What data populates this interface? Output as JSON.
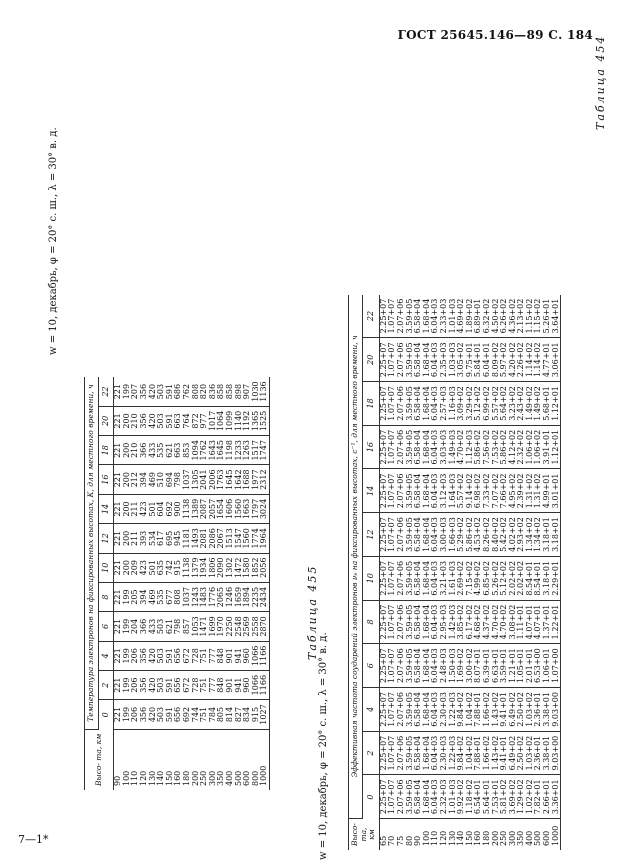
{
  "header": "ГОСТ 25645.146—89 С. 184",
  "footer": "7—1*",
  "table454": {
    "label": "Таблица 454",
    "title": "w = 10, декабрь, φ = 20° с. ш., λ = 30° в. д.",
    "subtitle": "Температура электронов на фиксированных высотах, К, для местного времени, ч",
    "alt_header": "Высо- та, км",
    "columns": [
      "0",
      "2",
      "4",
      "6",
      "8",
      "10",
      "12",
      "14",
      "16",
      "18",
      "20",
      "22"
    ],
    "rows": [
      [
        "90",
        "221",
        "221",
        "221",
        "221",
        "221",
        "221",
        "221",
        "221",
        "221",
        "221",
        "221",
        "221"
      ],
      [
        "100",
        "199",
        "199",
        "199",
        "199",
        "199",
        "200",
        "200",
        "200",
        "200",
        "200",
        "200",
        "199"
      ],
      [
        "110",
        "206",
        "206",
        "206",
        "204",
        "205",
        "209",
        "211",
        "211",
        "212",
        "210",
        "210",
        "207"
      ],
      [
        "120",
        "356",
        "356",
        "356",
        "366",
        "394",
        "423",
        "393",
        "423",
        "394",
        "366",
        "356",
        "356"
      ],
      [
        "130",
        "420",
        "420",
        "420",
        "433",
        "469",
        "501",
        "534",
        "501",
        "469",
        "433",
        "420",
        "420"
      ],
      [
        "140",
        "503",
        "503",
        "503",
        "503",
        "535",
        "635",
        "617",
        "604",
        "510",
        "535",
        "503",
        "503"
      ],
      [
        "150",
        "591",
        "591",
        "591",
        "621",
        "677",
        "742",
        "695",
        "692",
        "694",
        "621",
        "591",
        "591"
      ],
      [
        "160",
        "656",
        "656",
        "656",
        "798",
        "808",
        "915",
        "945",
        "900",
        "798",
        "663",
        "663",
        "686"
      ],
      [
        "180",
        "692",
        "672",
        "672",
        "857",
        "1037",
        "1138",
        "1181",
        "1138",
        "1037",
        "853",
        "764",
        "762"
      ],
      [
        "200",
        "744",
        "728",
        "728",
        "1053",
        "1243",
        "1379",
        "1493",
        "1389",
        "1305",
        "1094",
        "872",
        "808"
      ],
      [
        "250",
        "751",
        "751",
        "751",
        "1471",
        "1483",
        "1934",
        "2081",
        "2087",
        "2041",
        "1762",
        "977",
        "820"
      ],
      [
        "300",
        "784",
        "777",
        "777",
        "1699",
        "1776",
        "1806",
        "2086",
        "2057",
        "2006",
        "1643",
        "1017",
        "836"
      ],
      [
        "350",
        "805",
        "848",
        "848",
        "1970",
        "2065",
        "2090",
        "2067",
        "1654",
        "1763",
        "1645",
        "1064",
        "858"
      ],
      [
        "400",
        "814",
        "901",
        "901",
        "2250",
        "1246",
        "1302",
        "1513",
        "1606",
        "1645",
        "1198",
        "1099",
        "858"
      ],
      [
        "500",
        "827",
        "941",
        "941",
        "2548",
        "1659",
        "1472",
        "1547",
        "1560",
        "1642",
        "1233",
        "1140",
        "898"
      ],
      [
        "600",
        "834",
        "960",
        "960",
        "2569",
        "1894",
        "1580",
        "1560",
        "1663",
        "1688",
        "1263",
        "1192",
        "907"
      ],
      [
        "800",
        "915",
        "1066",
        "1066",
        "2558",
        "2235",
        "1852",
        "1774",
        "1797",
        "1977",
        "1517",
        "1365",
        "1030"
      ],
      [
        "1000",
        "1027",
        "1166",
        "1166",
        "2870",
        "2434",
        "2056",
        "1964",
        "3024",
        "2312",
        "1747",
        "1525",
        "1136"
      ]
    ]
  },
  "table455": {
    "label": "Таблица 455",
    "title": "w = 10, декабрь, φ = 20° с. ш., λ = 30° в. д.",
    "subtitle": "Эффективная частота соударений электронов νₑ на фиксированных высотах, с⁻¹, для местного времени, ч",
    "alt_header": "Высо- та, км",
    "columns": [
      "0",
      "2",
      "4",
      "6",
      "8",
      "10",
      "12",
      "14",
      "16",
      "18",
      "20",
      "22"
    ],
    "rows": [
      [
        "65",
        "2.25+07",
        "2.25+07",
        "2.25+07",
        "2.25+07",
        "2.25+07",
        "2.25+07",
        "2.25+07",
        "2.25+07",
        "2.25+07",
        "2.25+07",
        "2.25+07",
        "2.25+07"
      ],
      [
        "70",
        "1.07+07",
        "1.07+07",
        "1.07+07",
        "1.07+07",
        "1.07+07",
        "1.07+07",
        "1.07+07",
        "1.07+07",
        "1.07+07",
        "1.07+07",
        "1.07+07",
        "1.07+07"
      ],
      [
        "75",
        "2.07+06",
        "2.07+06",
        "2.07+06",
        "2.07+06",
        "2.07+06",
        "2.07+06",
        "2.07+06",
        "2.07+06",
        "2.07+06",
        "2.07+06",
        "2.07+06",
        "2.07+06"
      ],
      [
        "80",
        "3.59+05",
        "3.59+05",
        "3.59+05",
        "3.59+05",
        "3.59+05",
        "3.59+05",
        "3.59+05",
        "3.59+05",
        "3.59+05",
        "3.59+05",
        "3.59+05",
        "3.59+05"
      ],
      [
        "90",
        "6.58+04",
        "6.58+04",
        "6.58+04",
        "6.58+04",
        "6.58+04",
        "6.58+04",
        "6.58+04",
        "6.58+04",
        "6.58+04",
        "6.58+04",
        "6.58+04",
        "6.58+04"
      ],
      [
        "100",
        "1.68+04",
        "1.68+04",
        "1.68+04",
        "1.68+04",
        "1.68+04",
        "1.68+04",
        "1.68+04",
        "1.68+04",
        "1.68+04",
        "1.68+04",
        "1.68+04",
        "1.68+04"
      ],
      [
        "110",
        "6.04+03",
        "6.04+03",
        "6.04+03",
        "6.04+03",
        "6.04+03",
        "6.04+03",
        "6.04+03",
        "6.04+03",
        "6.04+03",
        "6.04+03",
        "6.04+03",
        "6.04+03"
      ],
      [
        "120",
        "2.32+03",
        "2.30+03",
        "2.30+03",
        "2.48+03",
        "2.95+03",
        "3.21+03",
        "3.00+03",
        "3.12+03",
        "3.03+03",
        "2.57+03",
        "2.35+03",
        "2.33+03"
      ],
      [
        "130",
        "1.01+03",
        "1.22+03",
        "1.22+03",
        "1.50+03",
        "1.42+03",
        "1.61+03",
        "1.66+03",
        "1.64+03",
        "1.49+03",
        "1.16+03",
        "1.03+03",
        "1.01+03"
      ],
      [
        "140",
        "9.92+02",
        "9.84+02",
        "9.84+02",
        "1.69+02",
        "3.85+02",
        "2.69+02",
        "5.29+02",
        "5.57+02",
        "4.70+02",
        "3.09+02",
        "3.05+02",
        "4.69+02"
      ],
      [
        "150",
        "1.18+02",
        "1.04+02",
        "1.04+02",
        "3.00+02",
        "6.17+02",
        "7.15+02",
        "5.86+02",
        "9.14+02",
        "1.12+03",
        "3.29+02",
        "9.75+01",
        "1.89+02"
      ],
      [
        "160",
        "6.54+01",
        "7.88+01",
        "7.88+01",
        "8.07+01",
        "4.68+02",
        "4.99+02",
        "4.53+02",
        "6.98+02",
        "5.86+02",
        "5.12+02",
        "5.84+01",
        "6.89+01"
      ],
      [
        "180",
        "5.64+01",
        "1.66+02",
        "1.66+02",
        "6.39+01",
        "4.37+02",
        "6.85+02",
        "8.26+02",
        "7.33+02",
        "7.56+02",
        "6.99+02",
        "6.04+01",
        "6.32+02"
      ],
      [
        "200",
        "7.53+01",
        "1.43+02",
        "1.43+02",
        "6.63+01",
        "4.70+02",
        "5.26+02",
        "8.40+02",
        "7.07+02",
        "7.53+02",
        "5.57+02",
        "8.09+02",
        "4.50+02"
      ],
      [
        "250",
        "5.81+02",
        "9.41+01",
        "9.41+01",
        "3.59+01",
        "4.70+02",
        "5.12+02",
        "5.42+02",
        "7.66+02",
        "5.86+02",
        "5.64+02",
        "5.97+02",
        "6.26+02"
      ],
      [
        "300",
        "3.69+02",
        "6.49+02",
        "6.49+02",
        "1.21+01",
        "3.08+02",
        "2.02+02",
        "4.02+02",
        "4.95+02",
        "4.12+02",
        "3.23+02",
        "4.20+02",
        "4.36+02"
      ],
      [
        "350",
        "1.29+02",
        "2.50+02",
        "2.50+02",
        "1.05+01",
        "1.11+01",
        "2.02+02",
        "2.93+02",
        "2.39+02",
        "2.32+02",
        "2.43+02",
        "2.26+02",
        "2.13+02"
      ],
      [
        "400",
        "1.02+02",
        "1.03+02",
        "1.03+02",
        "2.01+01",
        "4.07+01",
        "8.54+01",
        "1.34+02",
        "1.31+02",
        "1.06+02",
        "1.49+02",
        "1.14+02",
        "1.15+02"
      ],
      [
        "500",
        "7.82+01",
        "2.36+01",
        "2.36+01",
        "6.53+00",
        "4.07+01",
        "8.54+01",
        "1.34+02",
        "1.31+02",
        "1.06+02",
        "1.49+02",
        "1.14+02",
        "1.15+02"
      ],
      [
        "600",
        "2.66+01",
        "3.38+01",
        "3.38+01",
        "1.06+01",
        "1.37+01",
        "3.18+01",
        "3.18+01",
        "4.99+01",
        "3.91+01",
        "5.68+01",
        "4.77+01",
        "5.26+01"
      ],
      [
        "1000",
        "3.36+01",
        "9.03+00",
        "9.03+00",
        "1.07+00",
        "1.22+01",
        "2.29+01",
        "3.18+01",
        "3.01+01",
        "1.12+01",
        "1.12+01",
        "3.06+01",
        "3.64+01"
      ]
    ]
  }
}
